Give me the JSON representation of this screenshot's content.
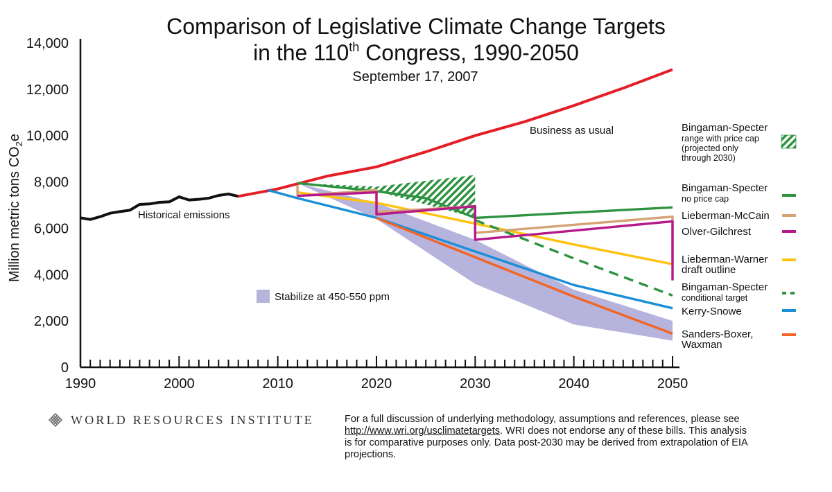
{
  "title": {
    "line1": "Comparison of Legislative Climate Change Targets",
    "line2_prefix": "in the 110",
    "line2_sup": "th",
    "line2_suffix": " Congress, 1990-2050",
    "subtitle": "September 17, 2007"
  },
  "colors": {
    "historical": "#111111",
    "bau": "#e31e26",
    "bingaman_no_cap": "#2e9340",
    "bingaman_hatch": "#2e9340",
    "lieberman_mccain": "#d4a373",
    "olver_gilchrest": "#b5198a",
    "lieberman_warner": "#ffc20e",
    "bingaman_conditional": "#2e9340",
    "kerry_snowe": "#1a8fd6",
    "sanders_boxer": "#f26522",
    "stabilize_band": "#b6b3dd"
  },
  "chart_data": {
    "type": "line",
    "title": "Comparison of Legislative Climate Change Targets in the 110th Congress, 1990-2050",
    "subtitle": "September 17, 2007",
    "xlabel": "",
    "ylabel": "Million metric tons CO2e",
    "ylabel_main": "Million metric tons CO",
    "ylabel_sub": "2",
    "ylabel_tail": "e",
    "xlim": [
      1990,
      2050
    ],
    "ylim": [
      0,
      14000
    ],
    "x_ticks": [
      "1990",
      "2000",
      "2010",
      "2020",
      "2030",
      "2040",
      "2050"
    ],
    "y_ticks": [
      "0",
      "2,000",
      "4,000",
      "6,000",
      "8,000",
      "10,000",
      "12,000",
      "14,000"
    ],
    "x_tick_values": [
      1990,
      2000,
      2010,
      2020,
      2030,
      2040,
      2050
    ],
    "y_tick_values": [
      0,
      2000,
      4000,
      6000,
      8000,
      10000,
      12000,
      14000
    ],
    "grid": false,
    "annotations": {
      "historical": "Historical emissions",
      "bau": "Business as usual",
      "stabilize": "Stabilize at 450-550 ppm"
    },
    "series": [
      {
        "key": "historical",
        "name": "Historical emissions",
        "style": "solid",
        "x": [
          1990,
          1991,
          1992,
          1993,
          1994,
          1995,
          1996,
          1997,
          1998,
          1999,
          2000,
          2001,
          2002,
          2003,
          2004,
          2005,
          2006
        ],
        "y": [
          6450,
          6380,
          6500,
          6650,
          6720,
          6780,
          7030,
          7050,
          7120,
          7140,
          7360,
          7220,
          7250,
          7300,
          7420,
          7480,
          7380
        ]
      },
      {
        "key": "bau",
        "name": "Business as usual",
        "style": "solid",
        "x": [
          2006,
          2010,
          2015,
          2020,
          2025,
          2030,
          2035,
          2040,
          2045,
          2050
        ],
        "y": [
          7380,
          7700,
          8250,
          8650,
          9300,
          10000,
          10600,
          11300,
          12050,
          12850
        ]
      },
      {
        "key": "bingaman_no_cap",
        "name": "Bingaman-Specter no price cap",
        "style": "solid",
        "x": [
          2012,
          2020,
          2025,
          2030,
          2050
        ],
        "y": [
          7950,
          7600,
          7300,
          6450,
          6900
        ]
      },
      {
        "key": "lieberman_mccain",
        "name": "Lieberman-McCain",
        "style": "solid",
        "x": [
          2012,
          2012,
          2020,
          2020,
          2030,
          2030,
          2050,
          2050
        ],
        "y": [
          7850,
          7400,
          7650,
          6700,
          6950,
          5800,
          6500,
          4500
        ]
      },
      {
        "key": "olver_gilchrest",
        "name": "Olver-Gilchrest",
        "style": "solid",
        "x": [
          2012,
          2020,
          2020,
          2030,
          2030,
          2050,
          2050
        ],
        "y": [
          7400,
          7550,
          6600,
          6950,
          5500,
          6300,
          3750
        ]
      },
      {
        "key": "lieberman_warner",
        "name": "Lieberman-Warner draft outline",
        "style": "solid",
        "x": [
          2012,
          2020,
          2030,
          2040,
          2050
        ],
        "y": [
          7550,
          7100,
          6200,
          5300,
          4450
        ]
      },
      {
        "key": "bingaman_conditional",
        "name": "Bingaman-Specter conditional target",
        "style": "dashed",
        "x": [
          2030,
          2040,
          2050
        ],
        "y": [
          6350,
          4700,
          3100
        ]
      },
      {
        "key": "kerry_snowe",
        "name": "Kerry-Snowe",
        "style": "solid",
        "x": [
          2009,
          2012,
          2020,
          2030,
          2040,
          2050
        ],
        "y": [
          7650,
          7300,
          6450,
          5000,
          3550,
          2550
        ]
      },
      {
        "key": "sanders_boxer",
        "name": "Sanders-Boxer, Waxman",
        "style": "solid",
        "x": [
          2020,
          2030,
          2040,
          2050
        ],
        "y": [
          6450,
          4750,
          3050,
          1450
        ]
      }
    ],
    "bands": [
      {
        "key": "stabilize",
        "name": "Stabilize at 450-550 ppm",
        "x": [
          2012,
          2020,
          2030,
          2040,
          2050
        ],
        "upper": [
          7950,
          7100,
          5500,
          3350,
          2000
        ],
        "lower": [
          7950,
          6400,
          3600,
          1850,
          1150
        ]
      },
      {
        "key": "bingaman_range",
        "name": "Bingaman-Specter range with price cap",
        "x": [
          2012,
          2020,
          2030
        ],
        "upper": [
          7950,
          7800,
          8300
        ],
        "lower": [
          7950,
          7600,
          6450
        ]
      }
    ]
  },
  "legend": {
    "items": [
      {
        "key": "bingaman_range",
        "label": "Bingaman-Specter",
        "sub": [
          "range with price cap",
          "(projected only",
          "through 2030)"
        ],
        "swatch": "hatch",
        "color": "#2e9340"
      },
      {
        "key": "bingaman_no_cap",
        "label": "Bingaman-Specter",
        "sub": [
          "no price cap"
        ],
        "swatch": "solid",
        "color": "#2e9340"
      },
      {
        "key": "lieberman_mccain",
        "label": "Lieberman-McCain",
        "sub": [],
        "swatch": "solid",
        "color": "#d4a373"
      },
      {
        "key": "olver_gilchrest",
        "label": "Olver-Gilchrest",
        "sub": [],
        "swatch": "solid",
        "color": "#b5198a"
      },
      {
        "key": "lieberman_warner",
        "label": "Lieberman-Warner",
        "sub": [],
        "line2": "draft outline",
        "swatch": "solid",
        "color": "#ffc20e"
      },
      {
        "key": "bingaman_conditional",
        "label": "Bingaman-Specter",
        "sub": [
          "conditional target"
        ],
        "swatch": "dashed",
        "color": "#2e9340"
      },
      {
        "key": "kerry_snowe",
        "label": "Kerry-Snowe",
        "sub": [],
        "swatch": "solid",
        "color": "#1a8fd6"
      },
      {
        "key": "sanders_boxer",
        "label": "Sanders-Boxer,",
        "sub": [],
        "line2": "Waxman",
        "swatch": "solid",
        "color": "#f26522"
      }
    ]
  },
  "footer": {
    "org_name": "WORLD RESOURCES INSTITUTE",
    "logo_icon": "wri-knot-logo-icon",
    "note_part1": "For a full discussion of underlying methodology, assumptions and references, please see ",
    "note_link": "http://www.wri.org/usclimatetargets",
    "note_part2": ".  WRI does not endorse any of these bills. This analysis is for comparative purposes only.  Data post-2030 may be derived from extrapolation of EIA projections."
  }
}
